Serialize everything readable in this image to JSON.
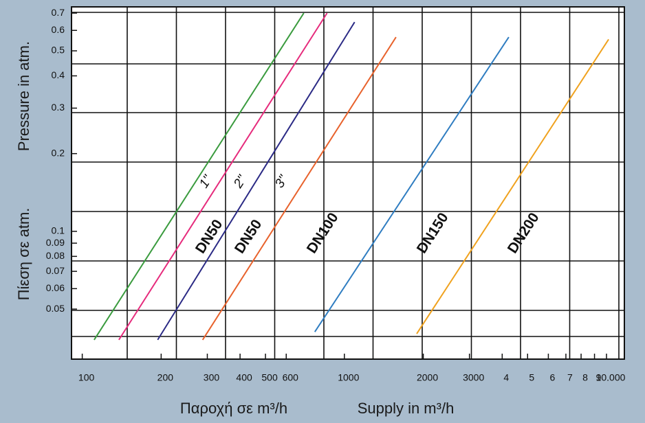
{
  "chart_data": {
    "type": "line",
    "xlog": true,
    "ylog": true,
    "ylabel": "Pressure in atm.",
    "ylabel2": "Πίεση σε atm.",
    "xlabel2": "Παροχή σε m³/h",
    "xlabel": "Supply in  m³/h",
    "xlim": [
      91,
      11700
    ],
    "ylim": [
      0.032,
      0.74
    ],
    "xticks": [
      100,
      200,
      300,
      400,
      500,
      600,
      1000,
      2000,
      3000,
      {
        "value": 4000,
        "label": "4"
      },
      {
        "value": 5000,
        "label": "5"
      },
      {
        "value": 6000,
        "label": "6"
      },
      {
        "value": 7000,
        "label": "7"
      },
      {
        "value": 8000,
        "label": "8"
      },
      {
        "value": 9000,
        "label": "9"
      },
      {
        "value": 10000,
        "label": "10.000"
      }
    ],
    "yticks": [
      0.7,
      0.6,
      0.5,
      0.4,
      0.3,
      0.2,
      0.1,
      0.09,
      0.08,
      0.07,
      0.06,
      0.05
    ],
    "series": [
      {
        "name": "DN50",
        "size": "1\"",
        "color": "#3a9b3e",
        "x": [
          111,
          700
        ],
        "values": [
          0.038,
          0.7
        ]
      },
      {
        "name": "DN50",
        "size": "2\"",
        "color": "#e62b7c",
        "x": [
          138,
          859
        ],
        "values": [
          0.038,
          0.7
        ]
      },
      {
        "name": "DN100",
        "size": "3\"",
        "color": "#2b2a85",
        "x": [
          194,
          1094
        ],
        "values": [
          0.038,
          0.646
        ]
      },
      {
        "name": "DN150",
        "color": "#e8622c",
        "x": [
          288,
          1574
        ],
        "values": [
          0.038,
          0.565
        ]
      },
      {
        "name": "DN200",
        "color": "#2f7dc1",
        "x": [
          771,
          4238
        ],
        "values": [
          0.0408,
          0.565
        ]
      },
      {
        "color": "#f0a21e",
        "x": [
          1888,
          10186
        ],
        "values": [
          0.0401,
          0.554
        ]
      }
    ]
  }
}
